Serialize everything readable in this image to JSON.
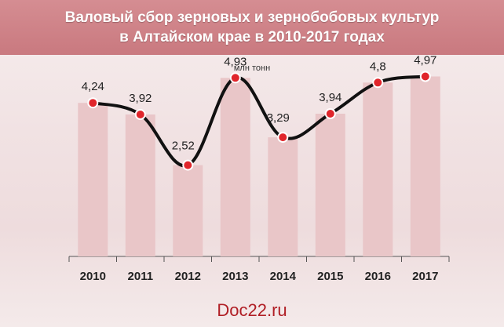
{
  "header": {
    "title_line1": "Валовый сбор зерновых и зернобобовых культур",
    "title_line2": "в Алтайском крае в 2010-2017 годах"
  },
  "chart_data": {
    "type": "bar",
    "categories": [
      "2010",
      "2011",
      "2012",
      "2013",
      "2014",
      "2015",
      "2016",
      "2017"
    ],
    "series": [
      {
        "values": [
          4.24,
          3.92,
          2.52,
          4.93,
          3.29,
          3.94,
          4.8,
          4.97
        ]
      }
    ],
    "value_labels": [
      "4,24",
      "3,92",
      "2,52",
      "4,93",
      "3,29",
      "3,94",
      "4,8",
      "4,97"
    ],
    "overlay": "line",
    "unit": "млн тонн",
    "ylim": [
      0,
      5.5
    ],
    "grid": false,
    "colors": {
      "bar": "#e9c6c8",
      "line": "#111111",
      "marker": "#e0252b"
    }
  },
  "footer": {
    "source": "Doc22.ru"
  }
}
